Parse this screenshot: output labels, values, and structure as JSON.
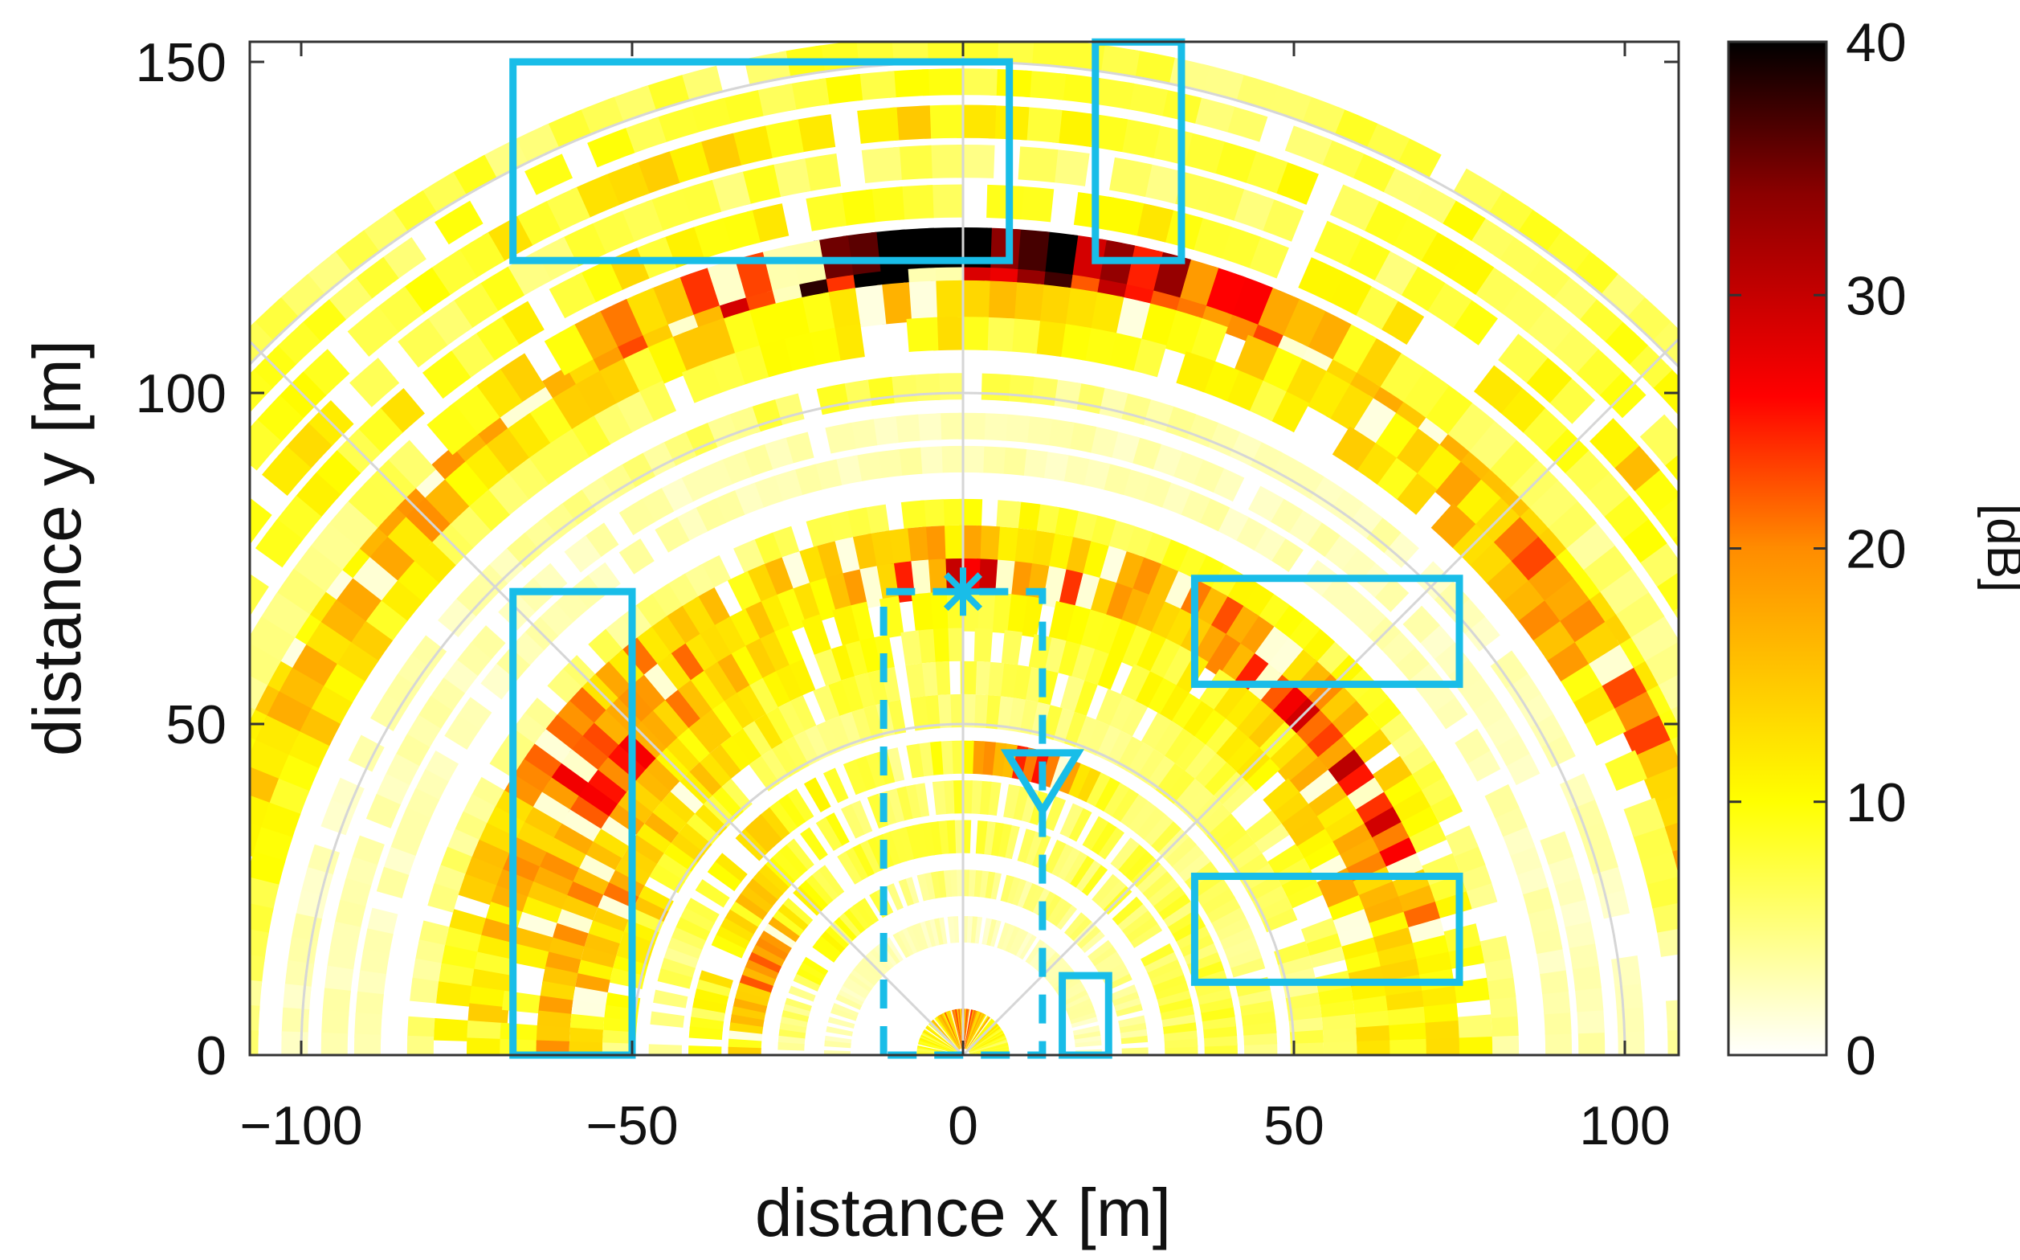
{
  "chart_data": {
    "type": "heatmap",
    "subtype": "polar-radar-map",
    "xlabel": "distance x [m]",
    "ylabel": "distance y [m]",
    "xlim": [
      -108,
      108
    ],
    "ylim": [
      0,
      153
    ],
    "x_ticks": [
      {
        "value": -100,
        "label": "−100"
      },
      {
        "value": -50,
        "label": "−50"
      },
      {
        "value": 0,
        "label": "0"
      },
      {
        "value": 50,
        "label": "50"
      },
      {
        "value": 100,
        "label": "100"
      }
    ],
    "y_ticks": [
      {
        "value": 0,
        "label": "0"
      },
      {
        "value": 50,
        "label": "50"
      },
      {
        "value": 100,
        "label": "100"
      },
      {
        "value": 150,
        "label": "150"
      }
    ],
    "polar_grid_ranges": [
      50,
      100,
      150
    ],
    "polar_grid_angles_deg": [
      45,
      90,
      135
    ],
    "colorbar": {
      "label": "[dB]",
      "range": [
        0,
        40
      ],
      "ticks": [
        {
          "value": 0,
          "label": "0"
        },
        {
          "value": 10,
          "label": "10"
        },
        {
          "value": 20,
          "label": "20"
        },
        {
          "value": 30,
          "label": "30"
        },
        {
          "value": 40,
          "label": "40"
        }
      ],
      "colormap": [
        "#ffffff",
        "#ffff00",
        "#ff8c00",
        "#ff0000",
        "#8b0000",
        "#000000"
      ]
    },
    "rings": [
      {
        "r": 118,
        "dr": 2.0,
        "base": 9,
        "peaks": [
          [
            90,
            14,
            26
          ],
          [
            120,
            12,
            6
          ],
          [
            55,
            20,
            6
          ],
          [
            145,
            15,
            4
          ]
        ]
      },
      {
        "r": 122,
        "dr": 3.0,
        "base": 5,
        "peaks": [
          [
            90,
            10,
            28
          ],
          [
            100,
            18,
            14
          ],
          [
            75,
            15,
            10
          ]
        ]
      },
      {
        "r": 114,
        "dr": 3.0,
        "base": 5,
        "peaks": [
          [
            90,
            24,
            9
          ],
          [
            30,
            18,
            14
          ],
          [
            145,
            14,
            12
          ]
        ]
      },
      {
        "r": 109,
        "dr": 2.5,
        "base": 4,
        "peaks": [
          [
            90,
            20,
            6
          ],
          [
            40,
            14,
            12
          ],
          [
            150,
            12,
            10
          ]
        ]
      },
      {
        "r": 129,
        "dr": 2.5,
        "base": 7,
        "peaks": [
          [
            60,
            18,
            4
          ],
          [
            115,
            18,
            4
          ]
        ]
      },
      {
        "r": 135,
        "dr": 2.5,
        "base": 7,
        "peaks": [
          [
            30,
            12,
            8
          ],
          [
            150,
            12,
            6
          ]
        ]
      },
      {
        "r": 141,
        "dr": 2.5,
        "base": 8,
        "peaks": [
          [
            95,
            20,
            4
          ]
        ]
      },
      {
        "r": 147,
        "dr": 2.0,
        "base": 8,
        "peaks": []
      },
      {
        "r": 152,
        "dr": 2.0,
        "base": 7,
        "peaks": []
      },
      {
        "r": 101,
        "dr": 2.0,
        "base": 3,
        "peaks": [
          [
            100,
            16,
            4
          ]
        ]
      },
      {
        "r": 95,
        "dr": 2.0,
        "base": 3,
        "peaks": []
      },
      {
        "r": 90,
        "dr": 2.0,
        "base": 3,
        "peaks": []
      },
      {
        "r": 82,
        "dr": 2.0,
        "base": 5,
        "peaks": [
          [
            90,
            20,
            3
          ],
          [
            50,
            16,
            3
          ]
        ]
      },
      {
        "r": 77,
        "dr": 3.0,
        "base": 8,
        "peaks": [
          [
            140,
            18,
            10
          ],
          [
            55,
            16,
            10
          ],
          [
            95,
            10,
            6
          ]
        ]
      },
      {
        "r": 72,
        "dr": 3.0,
        "base": 10,
        "peaks": [
          [
            88,
            10,
            16
          ],
          [
            140,
            16,
            12
          ],
          [
            30,
            14,
            10
          ],
          [
            45,
            12,
            10
          ]
        ]
      },
      {
        "r": 67,
        "dr": 3.0,
        "base": 9,
        "peaks": [
          [
            140,
            16,
            12
          ],
          [
            28,
            12,
            8
          ]
        ]
      },
      {
        "r": 62,
        "dr": 2.5,
        "base": 8,
        "peaks": [
          [
            160,
            20,
            12
          ],
          [
            25,
            16,
            6
          ]
        ]
      },
      {
        "r": 57,
        "dr": 2.5,
        "base": 7,
        "peaks": [
          [
            155,
            20,
            10
          ]
        ]
      },
      {
        "r": 52,
        "dr": 2.5,
        "base": 6,
        "peaks": [
          [
            150,
            14,
            6
          ]
        ]
      },
      {
        "r": 45,
        "dr": 2.5,
        "base": 6,
        "peaks": [
          [
            78,
            8,
            16
          ],
          [
            130,
            12,
            6
          ]
        ]
      },
      {
        "r": 39,
        "dr": 2.5,
        "base": 7,
        "peaks": [
          [
            150,
            14,
            6
          ]
        ]
      },
      {
        "r": 33,
        "dr": 2.5,
        "base": 7,
        "peaks": [
          [
            160,
            12,
            14
          ]
        ]
      },
      {
        "r": 26,
        "dr": 2.0,
        "base": 5,
        "peaks": [
          [
            140,
            14,
            4
          ]
        ]
      },
      {
        "r": 19,
        "dr": 2.0,
        "base": 3,
        "peaks": []
      },
      {
        "r": 4,
        "dr": 3.0,
        "base": 8,
        "peaks": [
          [
            90,
            30,
            12
          ]
        ]
      }
    ],
    "overlays": {
      "boxes": [
        {
          "x1": -68,
          "y1": 120,
          "x2": 7,
          "y2": 150
        },
        {
          "x1": 20,
          "y1": 120,
          "x2": 33,
          "y2": 153
        },
        {
          "x1": -68,
          "y1": 0,
          "x2": -50,
          "y2": 70
        },
        {
          "x1": 35,
          "y1": 56,
          "x2": 75,
          "y2": 72
        },
        {
          "x1": 35,
          "y1": 11,
          "x2": 75,
          "y2": 27
        },
        {
          "x1": 15,
          "y1": 0,
          "x2": 22,
          "y2": 12
        }
      ],
      "dashed_path": {
        "x1": -12,
        "x2": 12,
        "y_top": 70,
        "y_bottom": 0
      },
      "star_marker": {
        "x": 0,
        "y": 70
      },
      "triangle_marker": {
        "x": 12,
        "y": 42
      },
      "color": "#19bde8"
    }
  }
}
